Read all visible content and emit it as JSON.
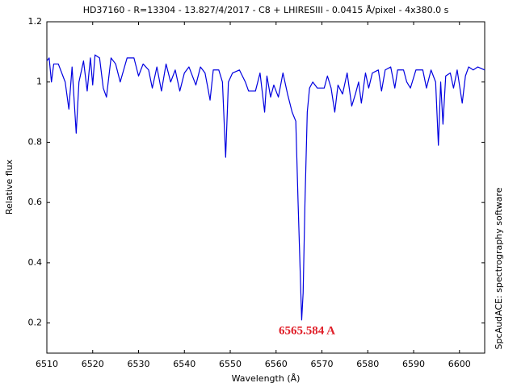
{
  "chart_data": {
    "type": "line",
    "title": "HD37160 - R=13304 - 13.827/4/2017 - C8 + LHIRESIII - 0.0415 Å/pixel - 4x380.0 s",
    "x_label": "Wavelength (Å)",
    "y_label": "Relative flux",
    "side_text": "SpcAudACE: spectrography software",
    "annotation": "6565.584 A",
    "xlim": [
      6510,
      6605.5
    ],
    "ylim": [
      0.1,
      1.2
    ],
    "xticks": [
      6510,
      6520,
      6530,
      6540,
      6550,
      6560,
      6570,
      6580,
      6590,
      6600
    ],
    "yticks": [
      0.2,
      0.4,
      0.6,
      0.8,
      1,
      1.2
    ],
    "grid": false,
    "series": [
      {
        "color": "#0000e0",
        "x": [
          6510,
          6510.5,
          6511,
          6511.5,
          6512.5,
          6514,
          6514.8,
          6515.5,
          6516.4,
          6517,
          6518,
          6518.8,
          6519.5,
          6520,
          6520.5,
          6521.5,
          6522.3,
          6523,
          6524,
          6525,
          6526,
          6527.5,
          6529,
          6530,
          6531,
          6532.2,
          6533,
          6534,
          6535,
          6536,
          6537,
          6538,
          6539,
          6540,
          6541,
          6542.5,
          6543.5,
          6544.5,
          6545,
          6545.6,
          6546.3,
          6547.5,
          6548.3,
          6549,
          6549.6,
          6550.5,
          6552,
          6553.3,
          6554,
          6555.5,
          6556.5,
          6557.5,
          6558,
          6558.8,
          6559.5,
          6560.5,
          6561.5,
          6562.5,
          6563.5,
          6564.3,
          6564.8,
          6565.3,
          6565.58,
          6565.9,
          6566.3,
          6566.8,
          6567.3,
          6568,
          6569,
          6570.5,
          6571.2,
          6572,
          6572.8,
          6573.5,
          6574.5,
          6575.5,
          6576.5,
          6577.3,
          6578,
          6578.6,
          6579.5,
          6580.2,
          6581,
          6582.3,
          6583,
          6583.8,
          6585,
          6585.9,
          6586.5,
          6587.8,
          6588.5,
          6589.3,
          6590.5,
          6592,
          6592.8,
          6593.8,
          6594.8,
          6595.4,
          6595.9,
          6596.4,
          6597,
          6598,
          6598.7,
          6599.5,
          6600.6,
          6601.3,
          6602,
          6603,
          6604,
          6605.5
        ],
        "values": [
          1.07,
          1.08,
          1.0,
          1.06,
          1.06,
          1.0,
          0.91,
          1.05,
          0.83,
          1.0,
          1.07,
          0.97,
          1.08,
          0.99,
          1.09,
          1.08,
          0.98,
          0.95,
          1.08,
          1.06,
          1.0,
          1.08,
          1.08,
          1.02,
          1.06,
          1.04,
          0.98,
          1.05,
          0.97,
          1.06,
          1.0,
          1.04,
          0.97,
          1.03,
          1.05,
          0.99,
          1.05,
          1.03,
          0.99,
          0.94,
          1.04,
          1.04,
          1.0,
          0.75,
          1.0,
          1.03,
          1.04,
          1.0,
          0.97,
          0.97,
          1.03,
          0.9,
          1.02,
          0.95,
          0.99,
          0.95,
          1.03,
          0.96,
          0.9,
          0.87,
          0.6,
          0.35,
          0.21,
          0.3,
          0.6,
          0.9,
          0.98,
          1.0,
          0.98,
          0.98,
          1.02,
          0.98,
          0.9,
          0.99,
          0.96,
          1.03,
          0.92,
          0.96,
          1.0,
          0.93,
          1.03,
          0.98,
          1.03,
          1.04,
          0.97,
          1.04,
          1.05,
          0.98,
          1.04,
          1.04,
          1.0,
          0.98,
          1.04,
          1.04,
          0.98,
          1.04,
          1.0,
          0.79,
          1.0,
          0.86,
          1.02,
          1.03,
          0.98,
          1.04,
          0.93,
          1.02,
          1.05,
          1.04,
          1.05,
          1.04
        ]
      }
    ]
  }
}
